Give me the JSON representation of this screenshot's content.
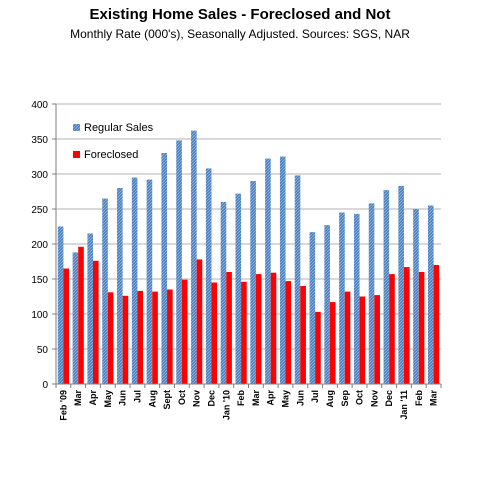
{
  "chart_data": {
    "type": "bar",
    "title": "Existing Home Sales - Foreclosed and Not",
    "subtitle": "Monthly Rate (000's), Seasonally Adjusted.  Sources: SGS, NAR",
    "xlabel": "",
    "ylabel": "",
    "ylim": [
      0,
      400
    ],
    "yticks": [
      0,
      50,
      100,
      150,
      200,
      250,
      300,
      350,
      400
    ],
    "grid": true,
    "legend_position": "top-left",
    "categories": [
      "Feb '09",
      "Mar",
      "Apr",
      "May",
      "Jun",
      "Jul",
      "Aug",
      "Sept",
      "Oct",
      "Nov",
      "Dec",
      "Jan '10",
      "Feb",
      "Mar",
      "Apr",
      "May",
      "Jun",
      "Jul",
      "Aug",
      "Sep",
      "Oct",
      "Nov",
      "Dec",
      "Jan '11",
      "Feb",
      "Mar"
    ],
    "series": [
      {
        "name": "Regular Sales",
        "color": "#4f81bd",
        "values": [
          225,
          188,
          215,
          265,
          280,
          295,
          292,
          330,
          348,
          362,
          308,
          260,
          272,
          290,
          322,
          325,
          298,
          217,
          227,
          245,
          243,
          258,
          277,
          283,
          250,
          255
        ]
      },
      {
        "name": "Foreclosed",
        "color": "#ff0000",
        "values": [
          165,
          196,
          176,
          131,
          126,
          133,
          132,
          135,
          149,
          178,
          145,
          160,
          146,
          157,
          159,
          147,
          140,
          103,
          117,
          132,
          125,
          127,
          157,
          167,
          160,
          170
        ]
      }
    ]
  }
}
